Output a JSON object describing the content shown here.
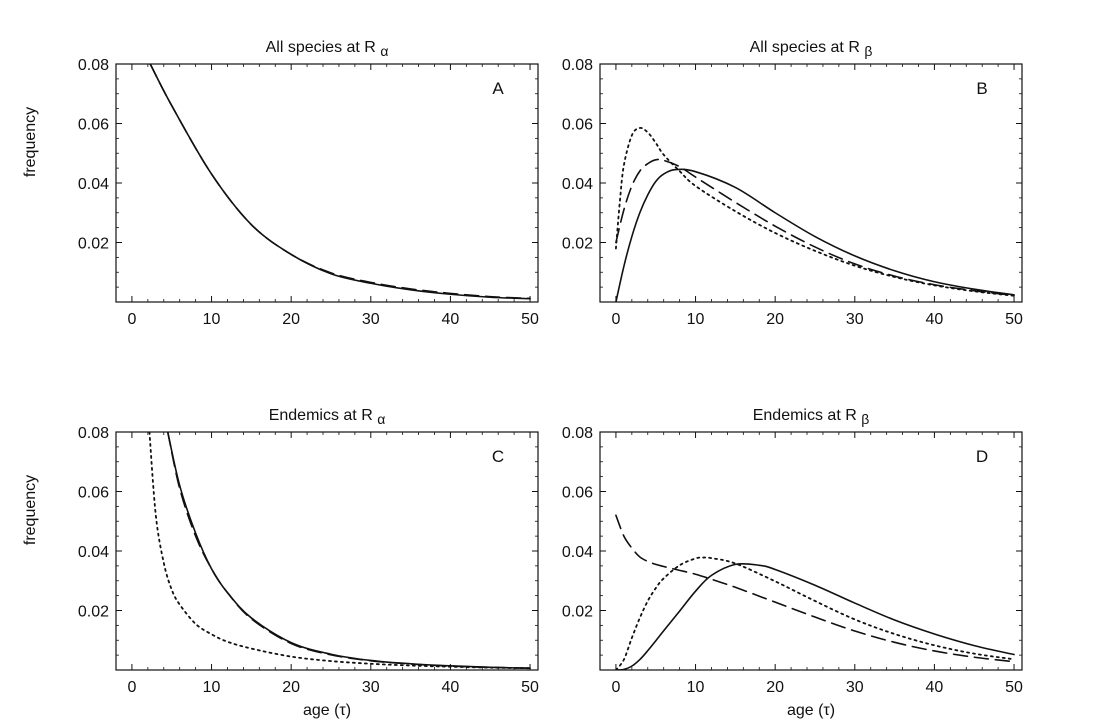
{
  "axes_labels": {
    "ylabel": "frequency",
    "xlabel": "age (τ)"
  },
  "chart_data": [
    {
      "type": "line",
      "title_main": "All species at R",
      "title_sub": "α",
      "panel_label": "A",
      "xlim": [
        -2,
        51
      ],
      "ylim": [
        0,
        0.08
      ],
      "xticks": [
        0,
        10,
        20,
        30,
        40,
        50
      ],
      "yticks": [
        0.02,
        0.04,
        0.06,
        0.08
      ],
      "ytick_labels": [
        "0.02",
        "0.04",
        "0.06",
        "0.08"
      ],
      "x": [
        2.3,
        5,
        10,
        15,
        20,
        25,
        30,
        35,
        40,
        45,
        50
      ],
      "series": [
        {
          "style": "solid",
          "values": [
            0.08,
            0.066,
            0.043,
            0.026,
            0.016,
            0.0095,
            0.0063,
            0.0041,
            0.0026,
            0.0016,
            0.0011
          ]
        },
        {
          "style": "dashed",
          "values": [
            0.08,
            0.066,
            0.043,
            0.026,
            0.016,
            0.0098,
            0.0066,
            0.0044,
            0.0029,
            0.0018,
            0.0012
          ]
        }
      ]
    },
    {
      "type": "line",
      "title_main": "All species at R",
      "title_sub": "β",
      "panel_label": "B",
      "xlim": [
        -2,
        51
      ],
      "ylim": [
        0,
        0.08
      ],
      "xticks": [
        0,
        10,
        20,
        30,
        40,
        50
      ],
      "yticks": [
        0.02,
        0.04,
        0.06,
        0.08
      ],
      "ytick_labels": [
        "0.02",
        "0.04",
        "0.06",
        "0.08"
      ],
      "series": [
        {
          "style": "solid",
          "x": [
            0,
            1,
            2,
            3,
            4,
            5,
            6,
            7.5,
            10,
            15,
            20,
            25,
            30,
            35,
            40,
            45,
            50
          ],
          "values": [
            0,
            0.012,
            0.022,
            0.03,
            0.036,
            0.0405,
            0.043,
            0.0445,
            0.0438,
            0.0385,
            0.03,
            0.022,
            0.0155,
            0.0105,
            0.0068,
            0.0043,
            0.0024
          ]
        },
        {
          "style": "dashed",
          "x": [
            0,
            1,
            2,
            3,
            4,
            5,
            6,
            8,
            10,
            15,
            20,
            25,
            30,
            35,
            40,
            45,
            50
          ],
          "values": [
            0.02,
            0.031,
            0.039,
            0.044,
            0.0465,
            0.0478,
            0.0476,
            0.0455,
            0.042,
            0.0335,
            0.0255,
            0.0185,
            0.0128,
            0.0087,
            0.0058,
            0.0038,
            0.0022
          ]
        },
        {
          "style": "dotted",
          "x": [
            0,
            0.5,
            1,
            2,
            3,
            4,
            5,
            6,
            8,
            10,
            15,
            20,
            25,
            30,
            35,
            40,
            45,
            50
          ],
          "values": [
            0.018,
            0.034,
            0.046,
            0.056,
            0.0585,
            0.057,
            0.0535,
            0.0495,
            0.044,
            0.039,
            0.0305,
            0.0232,
            0.0172,
            0.0122,
            0.0084,
            0.0056,
            0.0036,
            0.0021
          ]
        }
      ]
    },
    {
      "type": "line",
      "title_main": "Endemics at R",
      "title_sub": "α",
      "panel_label": "C",
      "xlim": [
        -2,
        51
      ],
      "ylim": [
        0,
        0.08
      ],
      "xticks": [
        0,
        10,
        20,
        30,
        40,
        50
      ],
      "yticks": [
        0.02,
        0.04,
        0.06,
        0.08
      ],
      "ytick_labels": [
        "0.02",
        "0.04",
        "0.06",
        "0.08"
      ],
      "series": [
        {
          "style": "solid",
          "x": [
            4.5,
            6,
            8,
            10,
            12,
            15,
            20,
            25,
            30,
            35,
            40,
            45,
            50
          ],
          "values": [
            0.08,
            0.062,
            0.046,
            0.034,
            0.026,
            0.0175,
            0.0092,
            0.0053,
            0.0032,
            0.0021,
            0.0014,
            0.0009,
            0.0006
          ]
        },
        {
          "style": "dashed",
          "x": [
            4.5,
            6,
            8,
            10,
            12,
            15,
            20,
            25,
            30,
            35,
            40,
            45,
            50
          ],
          "values": [
            0.08,
            0.061,
            0.045,
            0.034,
            0.026,
            0.0172,
            0.0089,
            0.0051,
            0.0031,
            0.002,
            0.0013,
            0.0009,
            0.0006
          ]
        },
        {
          "style": "dotted",
          "x": [
            2.2,
            3,
            4,
            5,
            6,
            8,
            10,
            12,
            15,
            20,
            25,
            30,
            35,
            40,
            45,
            50
          ],
          "values": [
            0.08,
            0.052,
            0.036,
            0.027,
            0.022,
            0.0155,
            0.012,
            0.0095,
            0.0072,
            0.0045,
            0.003,
            0.0021,
            0.0015,
            0.0011,
            0.0008,
            0.0006
          ]
        }
      ]
    },
    {
      "type": "line",
      "title_main": "Endemics at R",
      "title_sub": "β",
      "panel_label": "D",
      "xlim": [
        -2,
        51
      ],
      "ylim": [
        0,
        0.08
      ],
      "xticks": [
        0,
        10,
        20,
        30,
        40,
        50
      ],
      "yticks": [
        0.02,
        0.04,
        0.06,
        0.08
      ],
      "ytick_labels": [
        "0.02",
        "0.04",
        "0.06",
        "0.08"
      ],
      "series": [
        {
          "style": "solid",
          "x": [
            0,
            1,
            2,
            3,
            4,
            5,
            6,
            8,
            10,
            12,
            15,
            18,
            20,
            25,
            30,
            35,
            40,
            45,
            50
          ],
          "values": [
            0,
            0.0002,
            0.0013,
            0.0035,
            0.0065,
            0.0098,
            0.0132,
            0.0198,
            0.0265,
            0.0318,
            0.0355,
            0.0352,
            0.0338,
            0.0285,
            0.0225,
            0.0168,
            0.0121,
            0.0082,
            0.0052
          ]
        },
        {
          "style": "dashed",
          "x": [
            0,
            1,
            2,
            3,
            4,
            5,
            6,
            8,
            10,
            12,
            15,
            20,
            25,
            30,
            35,
            40,
            45,
            50
          ],
          "values": [
            0.052,
            0.045,
            0.041,
            0.038,
            0.0365,
            0.0355,
            0.0348,
            0.0335,
            0.0322,
            0.0305,
            0.0278,
            0.0228,
            0.0178,
            0.0131,
            0.0093,
            0.0064,
            0.0043,
            0.0028
          ]
        },
        {
          "style": "dotted",
          "x": [
            0,
            1,
            2,
            3,
            4,
            5,
            6,
            8,
            10,
            11,
            12,
            15,
            20,
            25,
            30,
            35,
            40,
            45,
            50
          ],
          "values": [
            0,
            0.0035,
            0.0108,
            0.0175,
            0.0232,
            0.0275,
            0.0308,
            0.0352,
            0.0375,
            0.0378,
            0.0376,
            0.0358,
            0.0298,
            0.0232,
            0.017,
            0.0121,
            0.0083,
            0.0055,
            0.0036
          ]
        }
      ]
    }
  ]
}
